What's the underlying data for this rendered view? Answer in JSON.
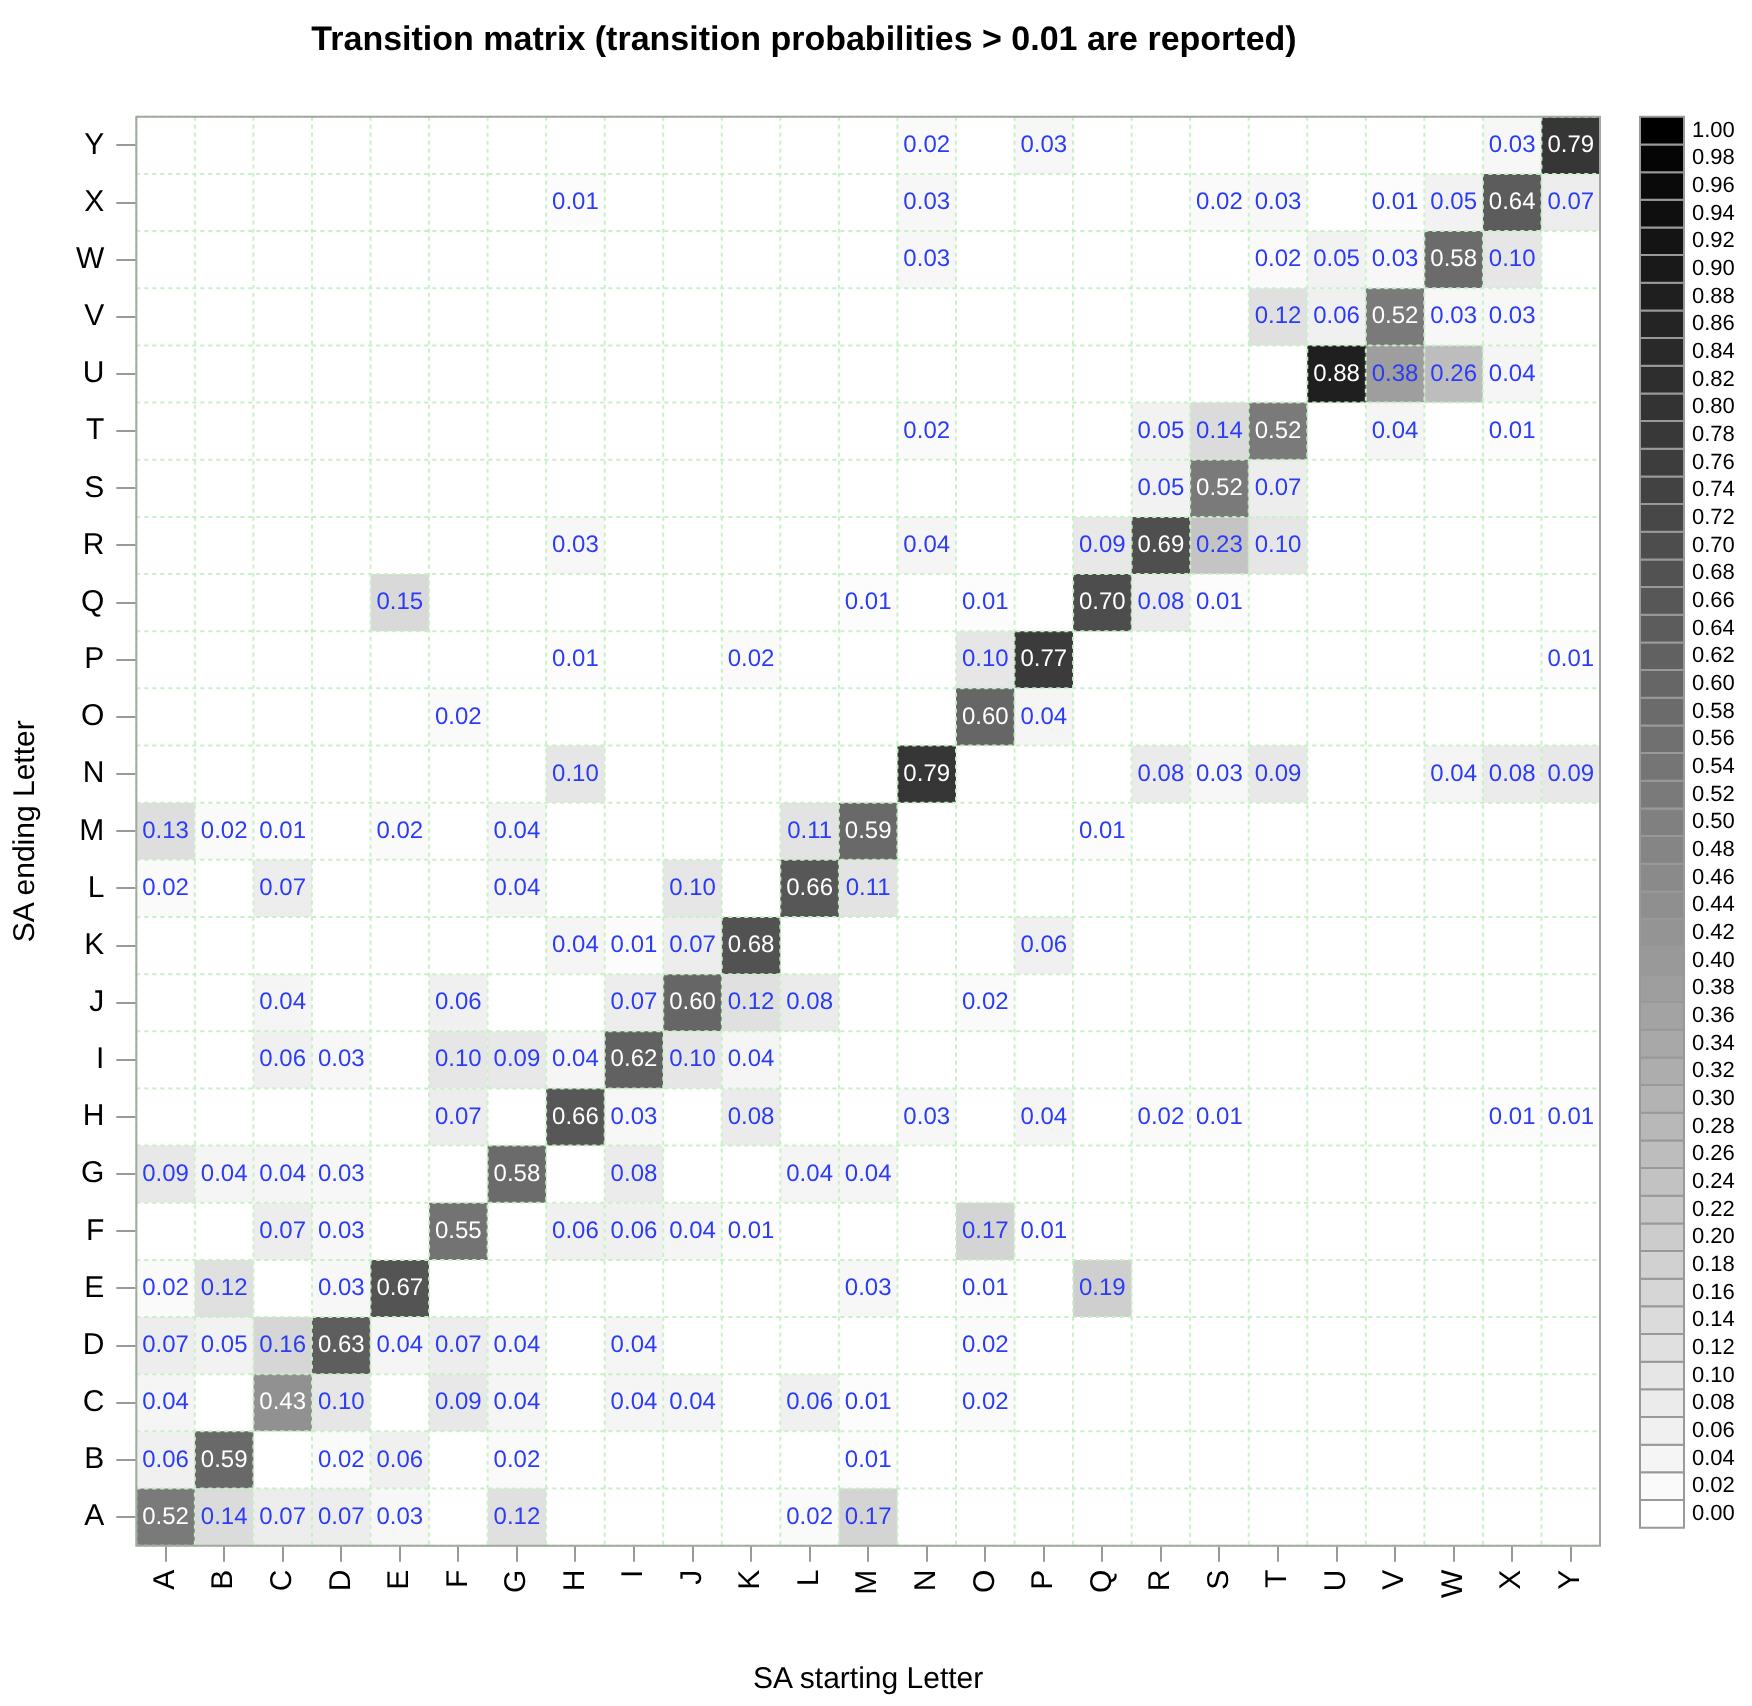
{
  "chart_data": {
    "type": "heatmap",
    "title": "Transition matrix (transition probabilities > 0.01 are reported)",
    "xlabel": "SA starting Letter",
    "ylabel": "SA ending Letter",
    "categories": [
      "A",
      "B",
      "C",
      "D",
      "E",
      "F",
      "G",
      "H",
      "I",
      "J",
      "K",
      "L",
      "M",
      "N",
      "O",
      "P",
      "Q",
      "R",
      "S",
      "T",
      "U",
      "V",
      "W",
      "X",
      "Y"
    ],
    "y_categories": [
      "Y",
      "X",
      "W",
      "V",
      "U",
      "T",
      "S",
      "R",
      "Q",
      "P",
      "O",
      "N",
      "M",
      "L",
      "K",
      "J",
      "I",
      "H",
      "G",
      "F",
      "E",
      "D",
      "C",
      "B",
      "A"
    ],
    "cells": [
      [
        null,
        null,
        null,
        null,
        null,
        null,
        null,
        null,
        null,
        null,
        null,
        null,
        null,
        0.02,
        null,
        0.03,
        null,
        null,
        null,
        null,
        null,
        null,
        null,
        0.03,
        0.79
      ],
      [
        null,
        null,
        null,
        null,
        null,
        null,
        null,
        0.01,
        null,
        null,
        null,
        null,
        null,
        0.03,
        null,
        null,
        null,
        null,
        0.02,
        0.03,
        null,
        0.01,
        0.05,
        0.64,
        0.07
      ],
      [
        null,
        null,
        null,
        null,
        null,
        null,
        null,
        null,
        null,
        null,
        null,
        null,
        null,
        0.03,
        null,
        null,
        null,
        null,
        null,
        0.02,
        0.05,
        0.03,
        0.58,
        0.1,
        null
      ],
      [
        null,
        null,
        null,
        null,
        null,
        null,
        null,
        null,
        null,
        null,
        null,
        null,
        null,
        null,
        null,
        null,
        null,
        null,
        null,
        0.12,
        0.06,
        0.52,
        0.03,
        0.03,
        null
      ],
      [
        null,
        null,
        null,
        null,
        null,
        null,
        null,
        null,
        null,
        null,
        null,
        null,
        null,
        null,
        null,
        null,
        null,
        null,
        null,
        null,
        0.88,
        0.38,
        0.26,
        0.04,
        null
      ],
      [
        null,
        null,
        null,
        null,
        null,
        null,
        null,
        null,
        null,
        null,
        null,
        null,
        null,
        0.02,
        null,
        null,
        null,
        0.05,
        0.14,
        0.52,
        null,
        0.04,
        null,
        0.01,
        null
      ],
      [
        null,
        null,
        null,
        null,
        null,
        null,
        null,
        null,
        null,
        null,
        null,
        null,
        null,
        null,
        null,
        null,
        null,
        0.05,
        0.52,
        0.07,
        null,
        null,
        null,
        null,
        null
      ],
      [
        null,
        null,
        null,
        null,
        null,
        null,
        null,
        0.03,
        null,
        null,
        null,
        null,
        null,
        0.04,
        null,
        null,
        0.09,
        0.69,
        0.23,
        0.1,
        null,
        null,
        null,
        null,
        null
      ],
      [
        null,
        null,
        null,
        null,
        0.15,
        null,
        null,
        null,
        null,
        null,
        null,
        null,
        0.01,
        null,
        0.01,
        null,
        0.7,
        0.08,
        0.01,
        null,
        null,
        null,
        null,
        null,
        null
      ],
      [
        null,
        null,
        null,
        null,
        null,
        null,
        null,
        0.01,
        null,
        null,
        0.02,
        null,
        null,
        null,
        0.1,
        0.77,
        null,
        null,
        null,
        null,
        null,
        null,
        null,
        null,
        0.01
      ],
      [
        null,
        null,
        null,
        null,
        null,
        0.02,
        null,
        null,
        null,
        null,
        null,
        null,
        null,
        null,
        0.6,
        0.04,
        null,
        null,
        null,
        null,
        null,
        null,
        null,
        null,
        null
      ],
      [
        null,
        null,
        null,
        null,
        null,
        null,
        null,
        0.1,
        null,
        null,
        null,
        null,
        null,
        0.79,
        null,
        null,
        null,
        0.08,
        0.03,
        0.09,
        null,
        null,
        0.04,
        0.08,
        0.09
      ],
      [
        0.13,
        0.02,
        0.01,
        null,
        0.02,
        null,
        0.04,
        null,
        null,
        null,
        null,
        0.11,
        0.59,
        null,
        null,
        null,
        0.01,
        null,
        null,
        null,
        null,
        null,
        null,
        null,
        null
      ],
      [
        0.02,
        null,
        0.07,
        null,
        null,
        null,
        0.04,
        null,
        null,
        0.1,
        null,
        0.66,
        0.11,
        null,
        null,
        null,
        null,
        null,
        null,
        null,
        null,
        null,
        null,
        null,
        null
      ],
      [
        null,
        null,
        null,
        null,
        null,
        null,
        null,
        0.04,
        0.01,
        0.07,
        0.68,
        null,
        null,
        null,
        null,
        0.06,
        null,
        null,
        null,
        null,
        null,
        null,
        null,
        null,
        null
      ],
      [
        null,
        null,
        0.04,
        null,
        null,
        0.06,
        null,
        null,
        0.07,
        0.6,
        0.12,
        0.08,
        null,
        null,
        0.02,
        null,
        null,
        null,
        null,
        null,
        null,
        null,
        null,
        null,
        null
      ],
      [
        null,
        null,
        0.06,
        0.03,
        null,
        0.1,
        0.09,
        0.04,
        0.62,
        0.1,
        0.04,
        null,
        null,
        null,
        null,
        null,
        null,
        null,
        null,
        null,
        null,
        null,
        null,
        null,
        null
      ],
      [
        null,
        null,
        null,
        null,
        null,
        0.07,
        null,
        0.66,
        0.03,
        null,
        0.08,
        null,
        null,
        0.03,
        null,
        0.04,
        null,
        0.02,
        0.01,
        null,
        null,
        null,
        null,
        0.01,
        0.01
      ],
      [
        0.09,
        0.04,
        0.04,
        0.03,
        null,
        null,
        0.58,
        null,
        0.08,
        null,
        null,
        0.04,
        0.04,
        null,
        null,
        null,
        null,
        null,
        null,
        null,
        null,
        null,
        null,
        null,
        null
      ],
      [
        null,
        null,
        0.07,
        0.03,
        null,
        0.55,
        null,
        0.06,
        0.06,
        0.04,
        0.01,
        null,
        null,
        null,
        0.17,
        0.01,
        null,
        null,
        null,
        null,
        null,
        null,
        null,
        null,
        null
      ],
      [
        0.02,
        0.12,
        null,
        0.03,
        0.67,
        null,
        null,
        null,
        null,
        null,
        null,
        null,
        0.03,
        null,
        0.01,
        null,
        0.19,
        null,
        null,
        null,
        null,
        null,
        null,
        null,
        null
      ],
      [
        0.07,
        0.05,
        0.16,
        0.63,
        0.04,
        0.07,
        0.04,
        null,
        0.04,
        null,
        null,
        null,
        null,
        null,
        0.02,
        null,
        null,
        null,
        null,
        null,
        null,
        null,
        null,
        null,
        null
      ],
      [
        0.04,
        null,
        0.43,
        0.1,
        null,
        0.09,
        0.04,
        null,
        0.04,
        0.04,
        null,
        0.06,
        0.01,
        null,
        0.02,
        null,
        null,
        null,
        null,
        null,
        null,
        null,
        null,
        null,
        null
      ],
      [
        0.06,
        0.59,
        null,
        0.02,
        0.06,
        null,
        0.02,
        null,
        null,
        null,
        null,
        null,
        0.01,
        null,
        null,
        null,
        null,
        null,
        null,
        null,
        null,
        null,
        null,
        null,
        null
      ],
      [
        0.52,
        0.14,
        0.07,
        0.07,
        0.03,
        null,
        0.12,
        null,
        null,
        null,
        null,
        0.02,
        0.17,
        null,
        null,
        null,
        null,
        null,
        null,
        null,
        null,
        null,
        null,
        null,
        null
      ]
    ],
    "cell_labels": [
      [
        null,
        null,
        null,
        null,
        null,
        null,
        null,
        null,
        null,
        null,
        null,
        null,
        null,
        "0.02",
        null,
        "0.03",
        null,
        null,
        null,
        null,
        null,
        null,
        null,
        "0.03",
        "0.79"
      ],
      [
        null,
        null,
        null,
        null,
        null,
        null,
        null,
        "0.01",
        null,
        null,
        null,
        null,
        null,
        "0.03",
        null,
        null,
        null,
        null,
        "0.02",
        "0.03",
        null,
        "0.01",
        "0.05",
        "0.64",
        "0.07"
      ],
      [
        null,
        null,
        null,
        null,
        null,
        null,
        null,
        null,
        null,
        null,
        null,
        null,
        null,
        "0.03",
        null,
        null,
        null,
        null,
        null,
        "0.02",
        "0.05",
        "0.03",
        "0.58",
        "0.10",
        null
      ],
      [
        null,
        null,
        null,
        null,
        null,
        null,
        null,
        null,
        null,
        null,
        null,
        null,
        null,
        null,
        null,
        null,
        null,
        null,
        null,
        "0.12",
        "0.06",
        "0.52",
        "0.03",
        "0.03",
        null
      ],
      [
        null,
        null,
        null,
        null,
        null,
        null,
        null,
        null,
        null,
        null,
        null,
        null,
        null,
        null,
        null,
        null,
        null,
        null,
        null,
        null,
        "0.88",
        "0.38",
        "0.26",
        "0.04",
        null
      ],
      [
        null,
        null,
        null,
        null,
        null,
        null,
        null,
        null,
        null,
        null,
        null,
        null,
        null,
        "0.02",
        null,
        null,
        null,
        "0.05",
        "0.14",
        "0.52",
        null,
        "0.04",
        null,
        "0.01",
        null
      ],
      [
        null,
        null,
        null,
        null,
        null,
        null,
        null,
        null,
        null,
        null,
        null,
        null,
        null,
        null,
        null,
        null,
        null,
        "0.05",
        "0.52",
        "0.07",
        null,
        null,
        null,
        null,
        null
      ],
      [
        null,
        null,
        null,
        null,
        null,
        null,
        null,
        "0.03",
        null,
        null,
        null,
        null,
        null,
        "0.04",
        null,
        null,
        "0.09",
        "0.69",
        "0.23",
        "0.10",
        null,
        null,
        null,
        null,
        null
      ],
      [
        null,
        null,
        null,
        null,
        "0.15",
        null,
        null,
        null,
        null,
        null,
        null,
        null,
        "0.01",
        null,
        "0.01",
        null,
        "0.70",
        "0.08",
        "0.01",
        null,
        null,
        null,
        null,
        null,
        null
      ],
      [
        null,
        null,
        null,
        null,
        null,
        null,
        null,
        "0.01",
        null,
        null,
        "0.02",
        null,
        null,
        null,
        "0.10",
        "0.77",
        null,
        null,
        null,
        null,
        null,
        null,
        null,
        null,
        "0.01"
      ],
      [
        null,
        null,
        null,
        null,
        null,
        "0.02",
        null,
        null,
        null,
        null,
        null,
        null,
        null,
        null,
        "0.60",
        "0.04",
        null,
        null,
        null,
        null,
        null,
        null,
        null,
        null,
        null
      ],
      [
        null,
        null,
        null,
        null,
        null,
        null,
        null,
        "0.10",
        null,
        null,
        null,
        null,
        null,
        "0.79",
        null,
        null,
        null,
        "0.08",
        "0.03",
        "0.09",
        null,
        null,
        "0.04",
        "0.08",
        "0.09"
      ],
      [
        "0.13",
        "0.02",
        "0.01",
        null,
        "0.02",
        null,
        "0.04",
        null,
        null,
        null,
        null,
        "0.11",
        "0.59",
        null,
        null,
        null,
        "0.01",
        null,
        null,
        null,
        null,
        null,
        null,
        null,
        null
      ],
      [
        "0.02",
        null,
        "0.07",
        null,
        null,
        null,
        "0.04",
        null,
        null,
        "0.10",
        null,
        "0.66",
        "0.11",
        null,
        null,
        null,
        null,
        null,
        null,
        null,
        null,
        null,
        null,
        null,
        null
      ],
      [
        null,
        null,
        null,
        null,
        null,
        null,
        null,
        "0.04",
        "0.01",
        "0.07",
        "0.68",
        null,
        null,
        null,
        null,
        "0.06",
        null,
        null,
        null,
        null,
        null,
        null,
        null,
        null,
        null
      ],
      [
        null,
        null,
        "0.04",
        null,
        null,
        "0.06",
        null,
        null,
        "0.07",
        "0.60",
        "0.12",
        "0.08",
        null,
        null,
        "0.02",
        null,
        null,
        null,
        null,
        null,
        null,
        null,
        null,
        null,
        null
      ],
      [
        null,
        null,
        "0.06",
        "0.03",
        null,
        "0.10",
        "0.09",
        "0.04",
        "0.62",
        "0.10",
        "0.04",
        null,
        null,
        null,
        null,
        null,
        null,
        null,
        null,
        null,
        null,
        null,
        null,
        null,
        null
      ],
      [
        null,
        null,
        null,
        null,
        null,
        "0.07",
        null,
        "0.66",
        "0.03",
        null,
        "0.08",
        null,
        null,
        "0.03",
        null,
        "0.04",
        null,
        "0.02",
        "0.01",
        null,
        null,
        null,
        null,
        "0.01",
        "0.01"
      ],
      [
        "0.09",
        "0.04",
        "0.04",
        "0.03",
        null,
        null,
        "0.58",
        null,
        "0.08",
        null,
        null,
        "0.04",
        "0.04",
        null,
        null,
        null,
        null,
        null,
        null,
        null,
        null,
        null,
        null,
        null,
        null
      ],
      [
        null,
        null,
        "0.07",
        "0.03",
        null,
        "0.55",
        null,
        "0.06",
        "0.06",
        "0.04",
        "0.01",
        null,
        null,
        null,
        "0.17",
        "0.01",
        null,
        null,
        null,
        null,
        null,
        null,
        null,
        null,
        null
      ],
      [
        "0.02",
        "0.12",
        null,
        "0.03",
        "0.67",
        null,
        null,
        null,
        null,
        null,
        null,
        null,
        "0.03",
        null,
        "0.01",
        null,
        "0.19",
        null,
        null,
        null,
        null,
        null,
        null,
        null,
        null
      ],
      [
        "0.07",
        "0.05",
        "0.16",
        "0.63",
        "0.04",
        "0.07",
        "0.04",
        null,
        "0.04",
        null,
        null,
        null,
        null,
        null,
        "0.02",
        null,
        null,
        null,
        null,
        null,
        null,
        null,
        null,
        null,
        null
      ],
      [
        "0.04",
        null,
        "0.43",
        "0.10",
        null,
        "0.09",
        "0.04",
        null,
        "0.04",
        "0.04",
        null,
        "0.06",
        "0.01",
        null,
        "0.02",
        null,
        null,
        null,
        null,
        null,
        null,
        null,
        null,
        null,
        null
      ],
      [
        "0.06",
        "0.59",
        null,
        "0.02",
        "0.06",
        null,
        "0.02",
        null,
        null,
        null,
        null,
        null,
        "0.01",
        null,
        null,
        null,
        null,
        null,
        null,
        null,
        null,
        null,
        null,
        null,
        null
      ],
      [
        "0.52",
        "0.14",
        "0.07",
        "0.07",
        "0.03",
        null,
        "0.12",
        null,
        null,
        null,
        null,
        "0.02",
        "0.17",
        null,
        null,
        null,
        null,
        null,
        null,
        null,
        null,
        null,
        null,
        null,
        null
      ]
    ],
    "clim": [
      0,
      1
    ],
    "cticks": [
      {
        "value": 0,
        "label": "0.00"
      },
      {
        "value": 0.02,
        "label": "0.02"
      },
      {
        "value": 0.04,
        "label": "0.04"
      },
      {
        "value": 0.06,
        "label": "0.06"
      },
      {
        "value": 0.08,
        "label": "0.08"
      },
      {
        "value": 0.1,
        "label": "0.10"
      },
      {
        "value": 0.12,
        "label": "0.12"
      },
      {
        "value": 0.14,
        "label": "0.14"
      },
      {
        "value": 0.16,
        "label": "0.16"
      },
      {
        "value": 0.18,
        "label": "0.18"
      },
      {
        "value": 0.2,
        "label": "0.20"
      },
      {
        "value": 0.22,
        "label": "0.22"
      },
      {
        "value": 0.24,
        "label": "0.24"
      },
      {
        "value": 0.26,
        "label": "0.26"
      },
      {
        "value": 0.28,
        "label": "0.28"
      },
      {
        "value": 0.3,
        "label": "0.30"
      },
      {
        "value": 0.32,
        "label": "0.32"
      },
      {
        "value": 0.34,
        "label": "0.34"
      },
      {
        "value": 0.36,
        "label": "0.36"
      },
      {
        "value": 0.38,
        "label": "0.38"
      },
      {
        "value": 0.4,
        "label": "0.40"
      },
      {
        "value": 0.42,
        "label": "0.42"
      },
      {
        "value": 0.44,
        "label": "0.44"
      },
      {
        "value": 0.46,
        "label": "0.46"
      },
      {
        "value": 0.48,
        "label": "0.48"
      },
      {
        "value": 0.5,
        "label": "0.50"
      },
      {
        "value": 0.52,
        "label": "0.52"
      },
      {
        "value": 0.54,
        "label": "0.54"
      },
      {
        "value": 0.56,
        "label": "0.56"
      },
      {
        "value": 0.58,
        "label": "0.58"
      },
      {
        "value": 0.6,
        "label": "0.60"
      },
      {
        "value": 0.62,
        "label": "0.62"
      },
      {
        "value": 0.64,
        "label": "0.64"
      },
      {
        "value": 0.66,
        "label": "0.66"
      },
      {
        "value": 0.68,
        "label": "0.68"
      },
      {
        "value": 0.7,
        "label": "0.70"
      },
      {
        "value": 0.72,
        "label": "0.72"
      },
      {
        "value": 0.74,
        "label": "0.74"
      },
      {
        "value": 0.76,
        "label": "0.76"
      },
      {
        "value": 0.78,
        "label": "0.78"
      },
      {
        "value": 0.8,
        "label": "0.80"
      },
      {
        "value": 0.82,
        "label": "0.82"
      },
      {
        "value": 0.84,
        "label": "0.84"
      },
      {
        "value": 0.86,
        "label": "0.86"
      },
      {
        "value": 0.88,
        "label": "0.88"
      },
      {
        "value": 0.9,
        "label": "0.90"
      },
      {
        "value": 0.92,
        "label": "0.92"
      },
      {
        "value": 0.94,
        "label": "0.94"
      },
      {
        "value": 0.96,
        "label": "0.96"
      },
      {
        "value": 0.98,
        "label": "0.98"
      },
      {
        "value": 1,
        "label": "1.00"
      }
    ],
    "grid": true
  }
}
